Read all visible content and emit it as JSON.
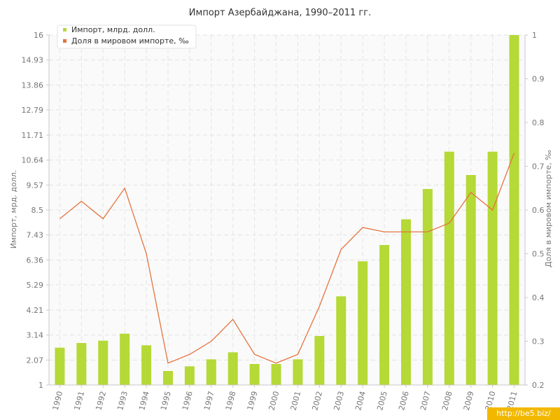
{
  "chart_data": {
    "type": "bar",
    "title": "Импорт Азербайджана, 1990–2011 гг.",
    "ylabel": "Импорт, мрд. долл.",
    "y2label": "Доля в мировом импорте, ‰",
    "categories": [
      "1990",
      "1991",
      "1992",
      "1993",
      "1994",
      "1995",
      "1996",
      "1997",
      "1998",
      "1999",
      "2000",
      "2001",
      "2002",
      "2003",
      "2004",
      "2005",
      "2006",
      "2007",
      "2008",
      "2009",
      "2010",
      "2011"
    ],
    "series": [
      {
        "name": "Импорт, млрд. долл.",
        "type": "bar",
        "axis": "left",
        "color": "#b5d936",
        "values": [
          2.6,
          2.8,
          2.9,
          3.2,
          2.7,
          1.6,
          1.8,
          2.1,
          2.4,
          1.9,
          1.9,
          2.1,
          3.1,
          4.8,
          6.3,
          7.0,
          8.1,
          9.4,
          11.0,
          10.0,
          11.0,
          16.0
        ]
      },
      {
        "name": "Доля в мировом импорте, ‰",
        "type": "line",
        "axis": "right",
        "color": "#e3743e",
        "values": [
          0.58,
          0.62,
          0.58,
          0.65,
          0.5,
          0.25,
          0.27,
          0.3,
          0.35,
          0.27,
          0.25,
          0.27,
          0.38,
          0.51,
          0.56,
          0.55,
          0.55,
          0.55,
          0.57,
          0.64,
          0.6,
          0.73
        ]
      }
    ],
    "ylim": [
      1,
      16
    ],
    "y2lim": [
      0.2,
      1
    ],
    "yticks": [
      "1",
      "2.07",
      "3.14",
      "4.21",
      "5.29",
      "6.36",
      "7.43",
      "8.5",
      "9.57",
      "10.64",
      "11.71",
      "12.79",
      "13.86",
      "14.93",
      "16"
    ],
    "y2ticks": [
      "0.2",
      "0.3",
      "0.4",
      "0.5",
      "0.6",
      "0.7",
      "0.8",
      "0.9",
      "1"
    ],
    "legend": "top-left",
    "grid": true
  },
  "watermark": "http://be5.biz/"
}
